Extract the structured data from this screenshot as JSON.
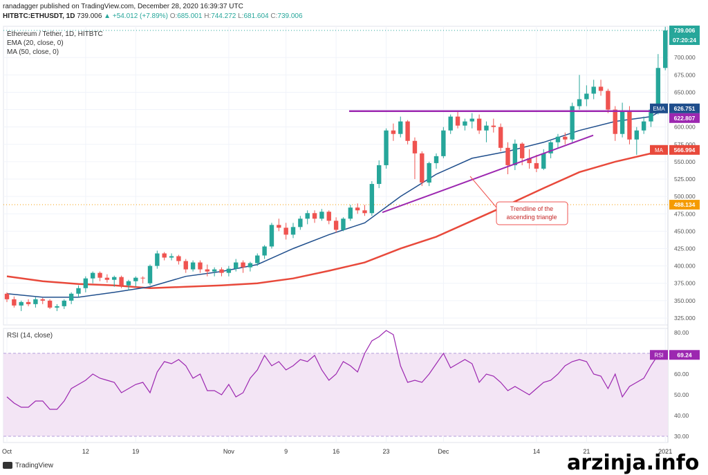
{
  "header": {
    "publisher": "ranadagger published on TradingView.com, December 28, 2020 16:39:37 UTC",
    "symbol": "HITBTC:ETHUSDT, 1D",
    "last": "739.006",
    "change": "▲ +54.012 (+7.89%)",
    "o_label": "O:",
    "o_val": "685.001",
    "h_label": "H:",
    "h_val": "744.272",
    "l_label": "L:",
    "l_val": "681.604",
    "c_label": "C:",
    "c_val": "739.006"
  },
  "legend": {
    "title": "Ethereum / Tether, 1D, HITBTC",
    "ema": "EMA (20, close, 0)",
    "ma": "MA (50, close, 0)",
    "rsi": "RSI (14, close)"
  },
  "axis": {
    "currency": "USDT",
    "price_ticks": [
      325,
      350,
      375,
      400,
      425,
      450,
      475,
      500,
      525,
      550,
      575,
      600,
      625,
      650,
      675,
      700
    ],
    "rsi_ticks": [
      30,
      40,
      50,
      60,
      70,
      80
    ],
    "x_ticks": [
      {
        "label": "Oct",
        "i": 0
      },
      {
        "label": "12",
        "i": 11
      },
      {
        "label": "19",
        "i": 18
      },
      {
        "label": "Nov",
        "i": 31
      },
      {
        "label": "9",
        "i": 39
      },
      {
        "label": "16",
        "i": 46
      },
      {
        "label": "23",
        "i": 53
      },
      {
        "label": "Dec",
        "i": 61
      },
      {
        "label": "14",
        "i": 74
      },
      {
        "label": "21",
        "i": 81
      },
      {
        "label": "2021",
        "i": 92
      }
    ]
  },
  "price_badges": {
    "last": "739.006",
    "countdown": "07:20:24",
    "ema_tag": "EMA",
    "ema_val": "626.751",
    "level": "622.807",
    "ma_tag": "MA",
    "ma_val": "566.994",
    "dotted": "488.134",
    "rsi_tag": "RSI",
    "rsi_val": "69.24"
  },
  "annotation": {
    "text_line1": "Trendline of the",
    "text_line2": "ascending triangle"
  },
  "colors": {
    "up": "#26a69a",
    "down": "#ef5350",
    "ema": "#1f4e8c",
    "ma": "#e8493b",
    "resistance": "#9c27b0",
    "rsi": "#9c27b0",
    "rsi_band": "#f3e5f5"
  },
  "watermark": "arzinja.info",
  "brand": "TradingView",
  "chart_data": [
    {
      "type": "candlestick",
      "title": "Ethereum / Tether, 1D, HITBTC",
      "ylim": [
        315,
        745
      ],
      "x_range": [
        0,
        96
      ],
      "candles": [
        [
          0,
          360,
          362,
          348,
          352
        ],
        [
          1,
          352,
          356,
          340,
          343
        ],
        [
          2,
          343,
          350,
          335,
          348
        ],
        [
          3,
          348,
          352,
          342,
          345
        ],
        [
          4,
          345,
          355,
          340,
          352
        ],
        [
          5,
          352,
          354,
          345,
          350
        ],
        [
          6,
          350,
          352,
          338,
          340
        ],
        [
          7,
          340,
          345,
          335,
          342
        ],
        [
          8,
          342,
          352,
          338,
          350
        ],
        [
          9,
          350,
          362,
          345,
          360
        ],
        [
          10,
          360,
          372,
          355,
          368
        ],
        [
          11,
          368,
          385,
          362,
          382
        ],
        [
          12,
          382,
          392,
          375,
          390
        ],
        [
          13,
          390,
          392,
          378,
          383
        ],
        [
          14,
          383,
          388,
          376,
          380
        ],
        [
          15,
          380,
          386,
          370,
          384
        ],
        [
          16,
          384,
          386,
          368,
          372
        ],
        [
          17,
          372,
          380,
          365,
          378
        ],
        [
          18,
          378,
          385,
          370,
          383
        ],
        [
          19,
          383,
          385,
          375,
          382
        ],
        [
          20,
          375,
          402,
          372,
          400
        ],
        [
          21,
          400,
          422,
          396,
          418
        ],
        [
          22,
          418,
          420,
          408,
          412
        ],
        [
          23,
          412,
          418,
          408,
          414
        ],
        [
          24,
          414,
          416,
          402,
          407
        ],
        [
          25,
          407,
          410,
          390,
          395
        ],
        [
          26,
          395,
          408,
          392,
          405
        ],
        [
          27,
          405,
          408,
          390,
          395
        ],
        [
          28,
          395,
          402,
          385,
          392
        ],
        [
          29,
          392,
          398,
          385,
          395
        ],
        [
          30,
          395,
          398,
          385,
          390
        ],
        [
          31,
          390,
          400,
          385,
          396
        ],
        [
          32,
          396,
          410,
          392,
          405
        ],
        [
          33,
          405,
          408,
          390,
          398
        ],
        [
          34,
          398,
          406,
          392,
          404
        ],
        [
          35,
          404,
          418,
          400,
          415
        ],
        [
          36,
          415,
          430,
          410,
          428
        ],
        [
          37,
          428,
          462,
          425,
          459
        ],
        [
          38,
          459,
          468,
          450,
          455
        ],
        [
          39,
          455,
          462,
          438,
          445
        ],
        [
          40,
          445,
          462,
          440,
          456
        ],
        [
          41,
          456,
          472,
          452,
          468
        ],
        [
          42,
          468,
          480,
          460,
          476
        ],
        [
          43,
          476,
          480,
          462,
          468
        ],
        [
          44,
          468,
          482,
          465,
          478
        ],
        [
          45,
          478,
          480,
          460,
          465
        ],
        [
          46,
          465,
          470,
          448,
          452
        ],
        [
          47,
          452,
          470,
          450,
          468
        ],
        [
          48,
          468,
          488,
          465,
          484
        ],
        [
          49,
          484,
          490,
          475,
          480
        ],
        [
          50,
          480,
          488,
          472,
          476
        ],
        [
          51,
          476,
          522,
          472,
          518
        ],
        [
          52,
          518,
          552,
          512,
          545
        ],
        [
          53,
          545,
          598,
          540,
          595
        ],
        [
          54,
          595,
          605,
          580,
          590
        ],
        [
          55,
          590,
          615,
          585,
          608
        ],
        [
          56,
          608,
          610,
          575,
          580
        ],
        [
          57,
          580,
          585,
          525,
          562
        ],
        [
          58,
          562,
          565,
          515,
          520
        ],
        [
          59,
          520,
          550,
          515,
          548
        ],
        [
          60,
          548,
          562,
          540,
          558
        ],
        [
          61,
          558,
          600,
          555,
          595
        ],
        [
          62,
          595,
          618,
          590,
          615
        ],
        [
          63,
          615,
          622,
          598,
          602
        ],
        [
          64,
          602,
          612,
          595,
          608
        ],
        [
          65,
          608,
          620,
          598,
          612
        ],
        [
          66,
          612,
          618,
          590,
          595
        ],
        [
          67,
          595,
          608,
          578,
          602
        ],
        [
          68,
          602,
          612,
          592,
          600
        ],
        [
          69,
          600,
          605,
          565,
          570
        ],
        [
          70,
          570,
          578,
          532,
          545
        ],
        [
          71,
          545,
          582,
          538,
          576
        ],
        [
          72,
          576,
          578,
          545,
          555
        ],
        [
          73,
          555,
          568,
          540,
          548
        ],
        [
          74,
          548,
          560,
          535,
          540
        ],
        [
          75,
          540,
          568,
          538,
          562
        ],
        [
          76,
          562,
          580,
          555,
          578
        ],
        [
          77,
          578,
          590,
          570,
          586
        ],
        [
          78,
          586,
          592,
          575,
          582
        ],
        [
          79,
          582,
          635,
          578,
          630
        ],
        [
          80,
          630,
          675,
          625,
          640
        ],
        [
          81,
          640,
          660,
          630,
          648
        ],
        [
          82,
          648,
          668,
          640,
          658
        ],
        [
          83,
          658,
          668,
          645,
          652
        ],
        [
          84,
          652,
          655,
          620,
          625
        ],
        [
          85,
          625,
          630,
          580,
          590
        ],
        [
          86,
          590,
          635,
          585,
          622
        ],
        [
          87,
          622,
          630,
          575,
          582
        ],
        [
          88,
          582,
          600,
          560,
          595
        ],
        [
          89,
          595,
          615,
          590,
          608
        ],
        [
          90,
          608,
          630,
          600,
          625
        ],
        [
          91,
          625,
          705,
          618,
          685
        ],
        [
          92,
          685,
          744.272,
          681.604,
          739.006
        ]
      ]
    },
    {
      "type": "line",
      "name": "EMA (20, close, 0)",
      "x": [
        0,
        5,
        10,
        15,
        20,
        25,
        30,
        35,
        40,
        45,
        50,
        55,
        60,
        65,
        70,
        75,
        80,
        85,
        90,
        92
      ],
      "values": [
        360,
        355,
        355,
        362,
        370,
        385,
        392,
        402,
        425,
        445,
        462,
        500,
        532,
        555,
        565,
        578,
        595,
        608,
        615,
        626.751
      ]
    },
    {
      "type": "line",
      "name": "MA (50, close, 0)",
      "x": [
        0,
        5,
        10,
        15,
        20,
        25,
        30,
        35,
        40,
        45,
        50,
        55,
        60,
        65,
        70,
        75,
        80,
        85,
        90,
        92
      ],
      "values": [
        385,
        378,
        374,
        372,
        368,
        370,
        372,
        375,
        382,
        393,
        405,
        425,
        442,
        465,
        488,
        512,
        535,
        550,
        562,
        566.994
      ]
    },
    {
      "type": "line",
      "name": "RSI (14, close)",
      "ylim": [
        27,
        82
      ],
      "x": [
        0,
        1,
        2,
        3,
        4,
        5,
        6,
        7,
        8,
        9,
        10,
        11,
        12,
        13,
        14,
        15,
        16,
        17,
        18,
        19,
        20,
        21,
        22,
        23,
        24,
        25,
        26,
        27,
        28,
        29,
        30,
        31,
        32,
        33,
        34,
        35,
        36,
        37,
        38,
        39,
        40,
        41,
        42,
        43,
        44,
        45,
        46,
        47,
        48,
        49,
        50,
        51,
        52,
        53,
        54,
        55,
        56,
        57,
        58,
        59,
        60,
        61,
        62,
        63,
        64,
        65,
        66,
        67,
        68,
        69,
        70,
        71,
        72,
        73,
        74,
        75,
        76,
        77,
        78,
        79,
        80,
        81,
        82,
        83,
        84,
        85,
        86,
        87,
        88,
        89,
        90,
        91,
        92
      ],
      "values": [
        49,
        46,
        44,
        44,
        47,
        47,
        43,
        43,
        47,
        53,
        55,
        57,
        60,
        58,
        57,
        56,
        51,
        53,
        55,
        56,
        51,
        61,
        66,
        65,
        67,
        64,
        58,
        60,
        52,
        52,
        50,
        55,
        49,
        51,
        58,
        62,
        69,
        64,
        66,
        62,
        64,
        67,
        66,
        69,
        62,
        57,
        60,
        66,
        64,
        61,
        70,
        76,
        78,
        81,
        79,
        64,
        56,
        57,
        56,
        60,
        65,
        70,
        63,
        65,
        67,
        65,
        56,
        60,
        59,
        56,
        52,
        54,
        52,
        50,
        53,
        56,
        57,
        60,
        64,
        66,
        67,
        66,
        60,
        59,
        53,
        60,
        49,
        54,
        56,
        58,
        64,
        69.24,
        69.24
      ]
    }
  ]
}
